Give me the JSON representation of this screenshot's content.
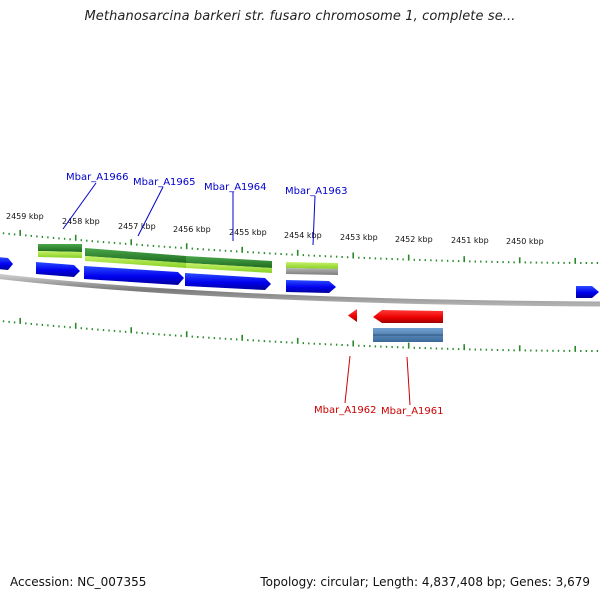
{
  "title": "Methanosarcina barkeri str. fusaro chromosome 1, complete se...",
  "footer": {
    "accession": "Accession: NC_007355",
    "summary": "Topology: circular; Length: 4,837,408 bp; Genes: 3,679"
  },
  "ruler": {
    "labels": [
      "2459 kbp",
      "2458 kbp",
      "2457 kbp",
      "2456 kbp",
      "2455 kbp",
      "2454 kbp",
      "2453 kbp",
      "2452 kbp",
      "2451 kbp",
      "2450 kbp"
    ]
  },
  "genes": [
    {
      "name": "Mbar_A1966",
      "strand": "+",
      "color": "#0000cc"
    },
    {
      "name": "Mbar_A1965",
      "strand": "+",
      "color": "#0000cc"
    },
    {
      "name": "Mbar_A1964",
      "strand": "+",
      "color": "#0000cc"
    },
    {
      "name": "Mbar_A1963",
      "strand": "+",
      "color": "#0000cc"
    },
    {
      "name": "Mbar_A1962",
      "strand": "-",
      "color": "#cc0000"
    },
    {
      "name": "Mbar_A1961",
      "strand": "-",
      "color": "#cc0000"
    }
  ],
  "colors": {
    "forward_gene": "#0000ff",
    "reverse_gene": "#ff0000",
    "backbone": "#8a8a8a",
    "ticks": "#2a8a2a",
    "feature_green_dark": "#2f8a2f",
    "feature_green_light": "#9adf3a",
    "feature_blue_grey": "#4a7db0"
  }
}
